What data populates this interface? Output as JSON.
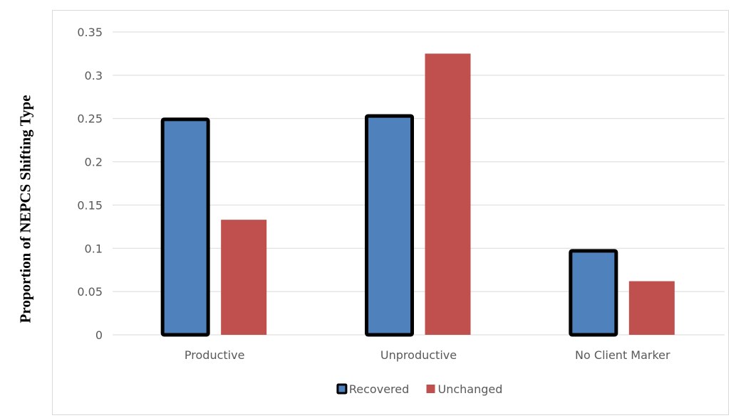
{
  "chart_data": {
    "type": "bar",
    "title": "",
    "xlabel": "",
    "ylabel": "Proportion of NEPCS Shifting Type",
    "categories": [
      "Productive",
      "Unproductive",
      "No Client Marker"
    ],
    "series": [
      {
        "name": "Recovered",
        "values": [
          0.249,
          0.253,
          0.097
        ],
        "color": "#4f81bd",
        "outline": "#000000"
      },
      {
        "name": "Unchanged",
        "values": [
          0.133,
          0.325,
          0.062
        ],
        "color": "#c0504d",
        "outline": null
      }
    ],
    "ylim": [
      0,
      0.35
    ],
    "yticks": [
      "0",
      "0.05",
      "0.1",
      "0.15",
      "0.2",
      "0.25",
      "0.3",
      "0.35"
    ],
    "ytick_values": [
      0,
      0.05,
      0.1,
      0.15,
      0.2,
      0.25,
      0.3,
      0.35
    ],
    "grid": true,
    "legend": "bottom-center",
    "gridline_color": "#d9d9d9"
  }
}
